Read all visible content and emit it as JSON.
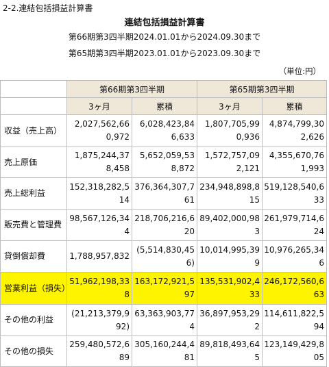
{
  "section_title": "2-2.連結包括損益計算書",
  "doc_title": "連結包括損益計算書",
  "period1": "第66期第3四半期2024.01.01から2024.09.30まで",
  "period2": "第65期第3四半期2023.01.01から2023.09.30まで",
  "unit": "（単位:円）",
  "table": {
    "group_headers": [
      "第66期第3四半期",
      "第65期第3四半期"
    ],
    "sub_headers": [
      "3ヶ月",
      "累積",
      "3ヶ月",
      "累積"
    ],
    "rows": [
      {
        "label": "収益（売上高）",
        "values": [
          "2,027,562,660,972",
          "6,028,423,846,633",
          "1,807,705,990,936",
          "4,874,799,302,626"
        ]
      },
      {
        "label": "売上原価",
        "values": [
          "1,875,244,378,458",
          "5,652,059,538,872",
          "1,572,757,092,121",
          "4,355,670,761,993"
        ]
      },
      {
        "label": "売上総利益",
        "values": [
          "152,318,282,514",
          "376,364,307,761",
          "234,948,898,815",
          "519,128,540,633"
        ]
      },
      {
        "label": "販売費と管理費",
        "values": [
          "98,567,126,344",
          "218,706,216,620",
          "89,402,000,983",
          "261,979,714,624"
        ]
      },
      {
        "label": "貸倒償却費",
        "values": [
          "1,788,957,832",
          "(5,514,830,456)",
          "10,014,995,399",
          "10,976,265,346"
        ]
      },
      {
        "label": "営業利益（損失）",
        "values": [
          "51,962,198,338",
          "163,172,921,597",
          "135,531,902,433",
          "246,172,560,663"
        ],
        "highlight": true
      },
      {
        "label": "その他の利益",
        "values": [
          "(21,213,379,992)",
          "63,363,903,774",
          "36,897,953,292",
          "114,611,822,594"
        ]
      },
      {
        "label": "その他の損失",
        "values": [
          "259,480,572,689",
          "305,160,244,481",
          "89,818,493,645",
          "123,149,429,805"
        ]
      }
    ]
  },
  "colors": {
    "header_bg": "#efe8d8",
    "highlight": "#fff400",
    "border": "#bdbdbd"
  }
}
